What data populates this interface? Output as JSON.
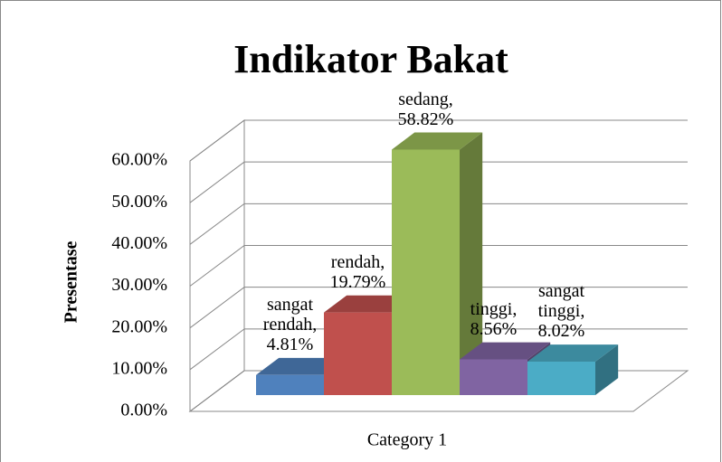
{
  "chart_data": {
    "type": "bar3d",
    "title": "Indikator Bakat",
    "categories": [
      "Category 1"
    ],
    "y_label": "Presentase",
    "series": [
      {
        "name": "sangat rendah",
        "color": "#4f81bd",
        "values": [
          4.81
        ],
        "value_labels": [
          "sangat rendah, 4.81%"
        ]
      },
      {
        "name": "rendah",
        "color": "#c0504d",
        "values": [
          19.79
        ],
        "value_labels": [
          "rendah, 19.79%"
        ]
      },
      {
        "name": "sedang",
        "color": "#9bbb59",
        "values": [
          58.82
        ],
        "value_labels": [
          "sedang, 58.82%"
        ]
      },
      {
        "name": "tinggi",
        "color": "#8064a2",
        "values": [
          8.56
        ],
        "value_labels": [
          "tinggi, 8.56%"
        ]
      },
      {
        "name": "sangat tinggi",
        "color": "#4bacc6",
        "values": [
          8.02
        ],
        "value_labels": [
          "sangat tinggi, 8.02%"
        ]
      }
    ],
    "ylim": [
      0,
      60
    ],
    "yticks": [
      {
        "value": 0,
        "label": "0.00%"
      },
      {
        "value": 10,
        "label": "10.00%"
      },
      {
        "value": 20,
        "label": "20.00%"
      },
      {
        "value": 30,
        "label": "30.00%"
      },
      {
        "value": 40,
        "label": "40.00%"
      },
      {
        "value": 50,
        "label": "50.00%"
      },
      {
        "value": 60,
        "label": "60.00%"
      }
    ],
    "grid": true
  }
}
